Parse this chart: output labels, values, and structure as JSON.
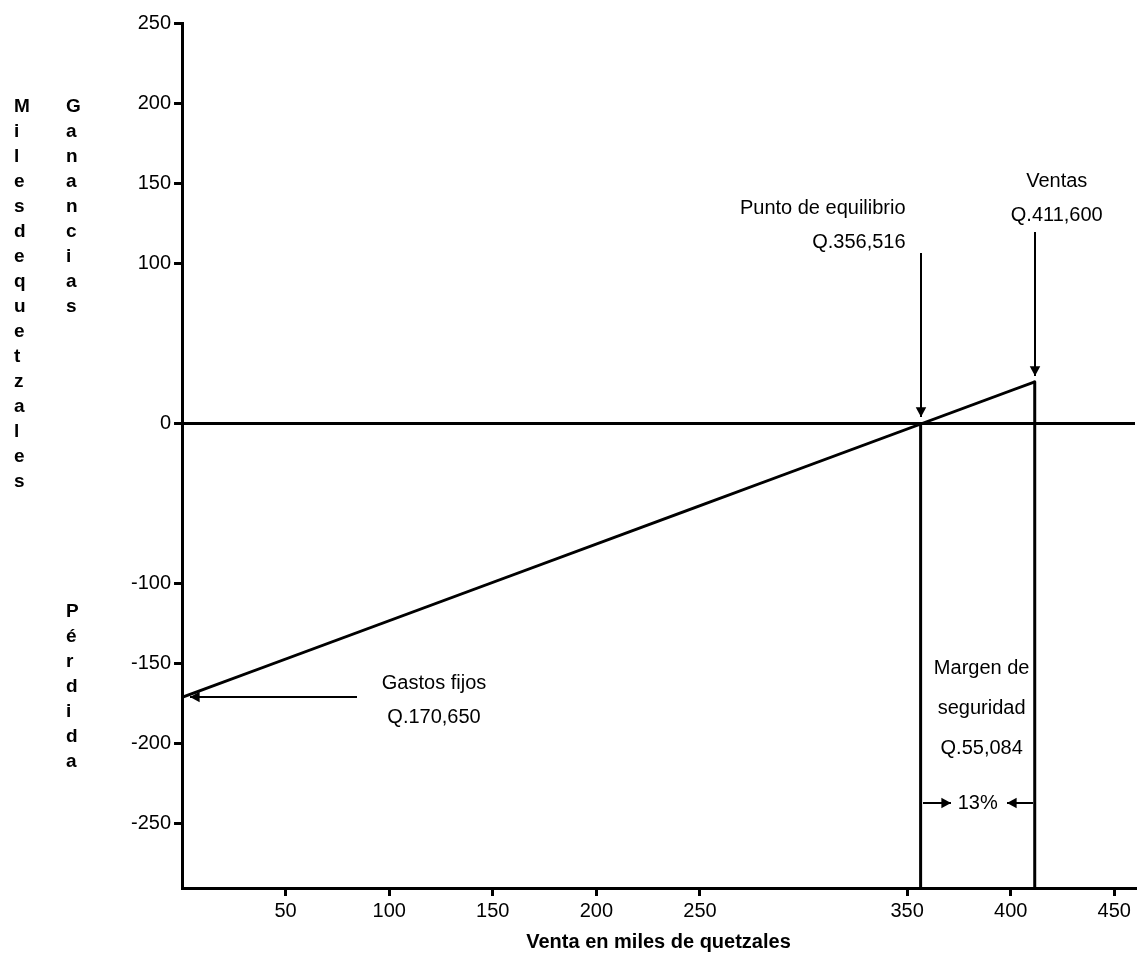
{
  "chart_data": {
    "type": "line",
    "xlabel": "Venta en miles de quetzales",
    "ylabel": "Miles de quetzales",
    "y2label": "Ganancias Pérdida",
    "xlim": [
      0,
      460
    ],
    "xticks": [
      50,
      100,
      150,
      200,
      250,
      350,
      400,
      450
    ],
    "ylim": [
      -290,
      250
    ],
    "yticks": [
      -250,
      -200,
      -150,
      -100,
      0,
      100,
      150,
      200,
      250
    ],
    "grid": false,
    "legend": false,
    "marker": "none",
    "line_style": "solid",
    "series": [
      {
        "color": "#000000",
        "x": [
          0,
          411.6
        ],
        "values": [
          -171,
          26
        ]
      },
      {
        "color": "#000000",
        "x": [
          356.516,
          356.516
        ],
        "values": [
          0,
          -290
        ]
      },
      {
        "color": "#000000",
        "x": [
          411.6,
          411.6
        ],
        "values": [
          26,
          -290
        ]
      }
    ],
    "ref_lines": [
      {
        "axis": "y",
        "value": 0,
        "color": "#000000"
      }
    ],
    "annotations": [
      {
        "text": "Punto de equilibrio\nQ.356,516",
        "x": 356.516,
        "y": 0
      },
      {
        "text": "Ventas\nQ.411,600",
        "x": 411.6,
        "y": 26
      },
      {
        "text": "Gastos fijos\nQ.170,650",
        "x": 0,
        "y": -171
      },
      "Margen de\nseguridad\nQ.55,084",
      "13%"
    ]
  }
}
